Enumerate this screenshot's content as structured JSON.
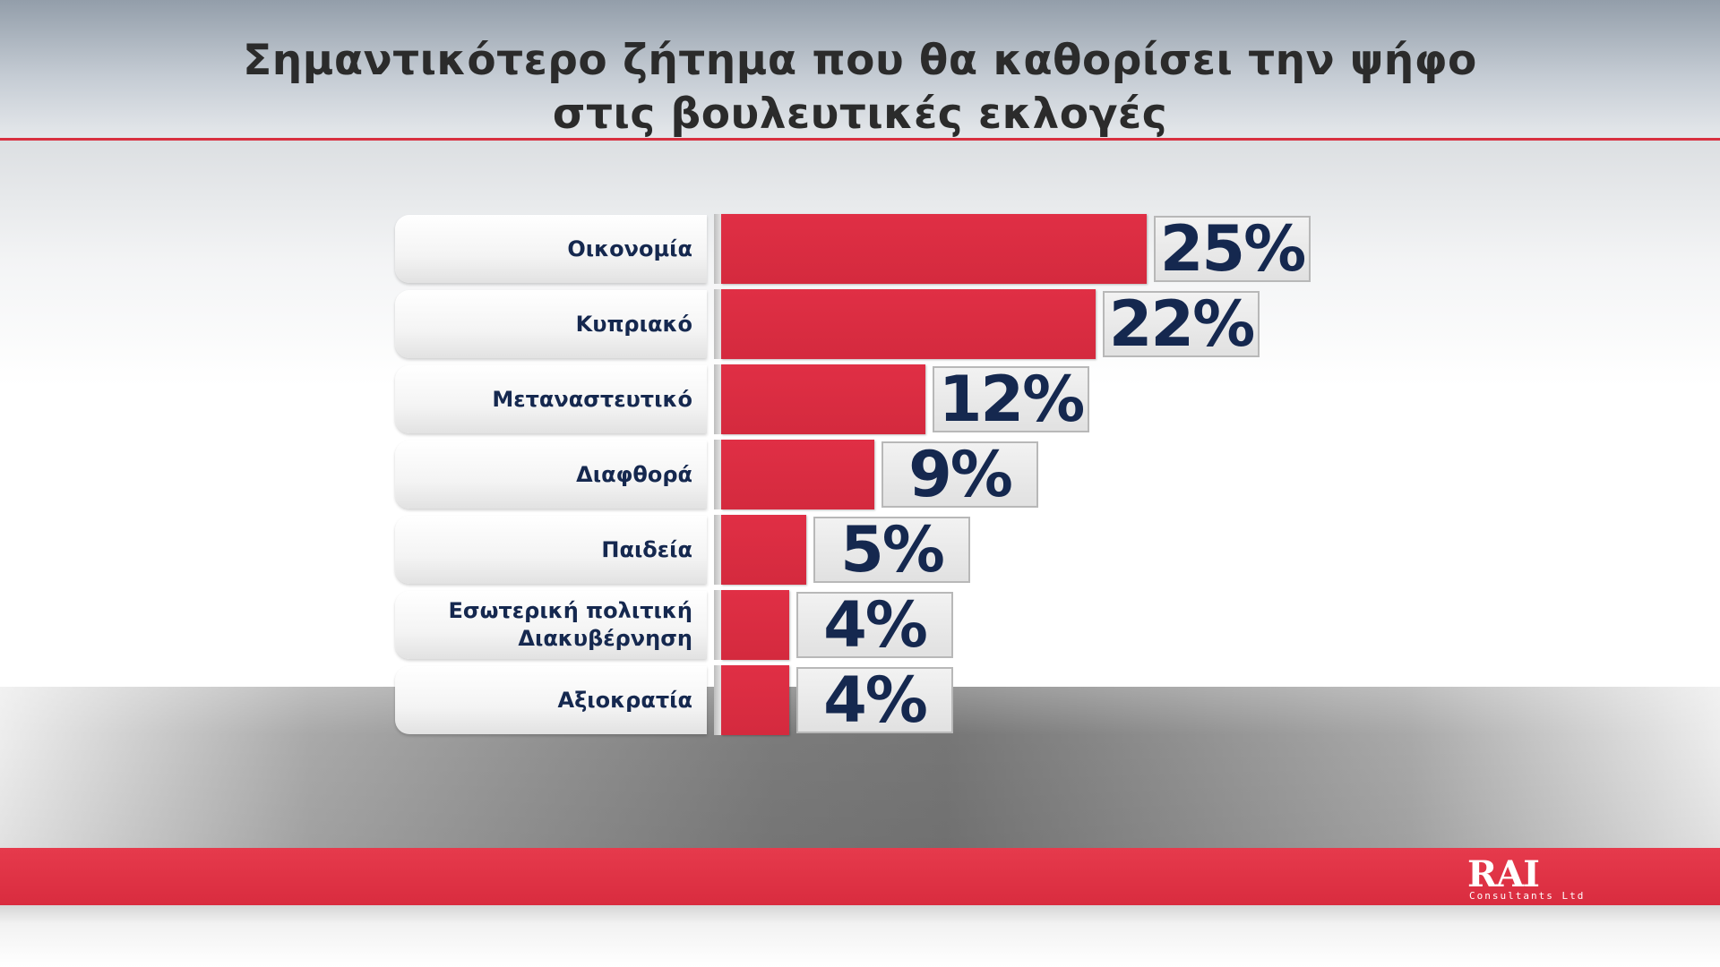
{
  "title_lines": [
    "Σημαντικότερο ζήτημα που θα καθορίσει την ψήφο",
    "στις βουλευτικές εκλογές"
  ],
  "logo": {
    "word": "RAI",
    "subtitle": "Consultants Ltd"
  },
  "colors": {
    "bar": "#d92c3f",
    "text": "#15284f",
    "band": "#e23447"
  },
  "chart_data": {
    "type": "bar",
    "orientation": "horizontal",
    "title": "Σημαντικότερο ζήτημα που θα καθορίσει την ψήφο στις βουλευτικές εκλογές",
    "categories": [
      "Οικονομία",
      "Κυπριακό",
      "Μεταναστευτικό",
      "Διαφθορά",
      "Παιδεία",
      "Εσωτερική πολιτική\nΔιακυβέρνηση",
      "Αξιοκρατία"
    ],
    "values": [
      25,
      22,
      12,
      9,
      5,
      4,
      4
    ],
    "value_labels": [
      "25%",
      "22%",
      "12%",
      "9%",
      "5%",
      "4%",
      "4%"
    ],
    "unit": "%",
    "xlim": [
      0,
      25
    ],
    "grid": false,
    "legend": "none"
  }
}
